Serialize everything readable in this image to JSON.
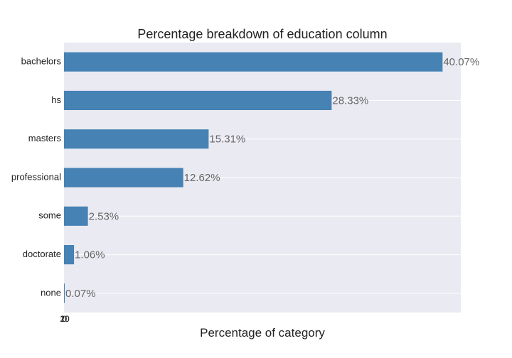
{
  "chart_data": {
    "type": "bar",
    "orientation": "horizontal",
    "title": "Percentage breakdown of education column",
    "xlabel": "Percentage of category",
    "ylabel": "",
    "categories": [
      "bachelors",
      "hs",
      "masters",
      "professional",
      "some",
      "doctorate",
      "none"
    ],
    "values": [
      40.07,
      28.33,
      15.31,
      12.62,
      2.53,
      1.06,
      0.07
    ],
    "value_labels": [
      "40.07%",
      "28.33%",
      "15.31%",
      "12.62%",
      "2.53%",
      "1.06%",
      "0.07%"
    ],
    "xlim": [
      0,
      42
    ],
    "x_ticks": [
      "0",
      "10",
      "20"
    ],
    "grid": true,
    "legend": "none",
    "colors": {
      "bar": "#4682b4",
      "plot_background": "#eaeaf2",
      "grid": "#ffffff",
      "value_text": "#666666"
    }
  }
}
